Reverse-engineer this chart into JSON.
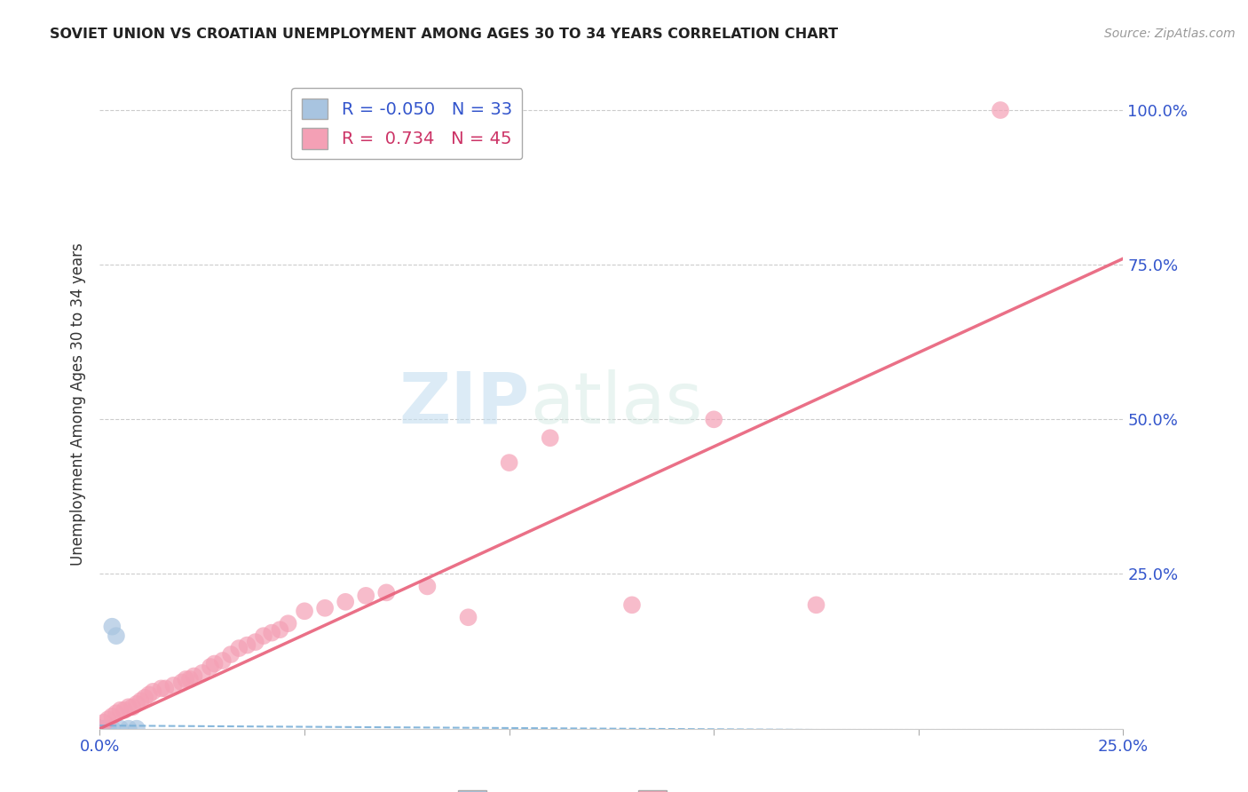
{
  "title": "SOVIET UNION VS CROATIAN UNEMPLOYMENT AMONG AGES 30 TO 34 YEARS CORRELATION CHART",
  "source": "Source: ZipAtlas.com",
  "ylabel": "Unemployment Among Ages 30 to 34 years",
  "xlim": [
    0.0,
    0.25
  ],
  "ylim": [
    0.0,
    1.05
  ],
  "xticks": [
    0.0,
    0.05,
    0.1,
    0.15,
    0.2,
    0.25
  ],
  "xticklabels": [
    "0.0%",
    "",
    "",
    "",
    "",
    "25.0%"
  ],
  "yticks": [
    0.0,
    0.25,
    0.5,
    0.75,
    1.0
  ],
  "yticklabels": [
    "",
    "25.0%",
    "50.0%",
    "75.0%",
    "100.0%"
  ],
  "soviet_R": -0.05,
  "soviet_N": 33,
  "croatian_R": 0.734,
  "croatian_N": 45,
  "soviet_color": "#a8c4e0",
  "croatian_color": "#f4a0b5",
  "soviet_line_color": "#7ab0d8",
  "croatian_line_color": "#e8607a",
  "watermark_zip": "ZIP",
  "watermark_atlas": "atlas",
  "soviet_x": [
    0.0,
    0.0,
    0.0,
    0.0,
    0.0,
    0.0,
    0.0,
    0.0,
    0.0,
    0.0,
    0.0,
    0.0,
    0.0,
    0.0,
    0.0,
    0.0,
    0.0,
    0.0,
    0.0,
    0.0,
    0.0,
    0.0,
    0.001,
    0.001,
    0.001,
    0.002,
    0.002,
    0.003,
    0.003,
    0.004,
    0.005,
    0.007,
    0.009
  ],
  "soviet_y": [
    0.0,
    0.0,
    0.0,
    0.0,
    0.0,
    0.0,
    0.0,
    0.0,
    0.0,
    0.0,
    0.0,
    0.0,
    0.0,
    0.0,
    0.0,
    0.0,
    0.0,
    0.0,
    0.0,
    0.0,
    0.0,
    0.0,
    0.0,
    0.0,
    0.0,
    0.0,
    0.0,
    0.0,
    0.165,
    0.15,
    0.0,
    0.0,
    0.0
  ],
  "croatian_x": [
    0.001,
    0.002,
    0.003,
    0.004,
    0.005,
    0.006,
    0.007,
    0.008,
    0.009,
    0.01,
    0.011,
    0.012,
    0.013,
    0.015,
    0.016,
    0.018,
    0.02,
    0.021,
    0.022,
    0.023,
    0.025,
    0.027,
    0.028,
    0.03,
    0.032,
    0.034,
    0.036,
    0.038,
    0.04,
    0.042,
    0.044,
    0.046,
    0.05,
    0.055,
    0.06,
    0.065,
    0.07,
    0.08,
    0.09,
    0.1,
    0.11,
    0.13,
    0.15,
    0.175,
    0.22
  ],
  "croatian_y": [
    0.01,
    0.015,
    0.02,
    0.025,
    0.03,
    0.03,
    0.035,
    0.035,
    0.04,
    0.045,
    0.05,
    0.055,
    0.06,
    0.065,
    0.065,
    0.07,
    0.075,
    0.08,
    0.08,
    0.085,
    0.09,
    0.1,
    0.105,
    0.11,
    0.12,
    0.13,
    0.135,
    0.14,
    0.15,
    0.155,
    0.16,
    0.17,
    0.19,
    0.195,
    0.205,
    0.215,
    0.22,
    0.23,
    0.18,
    0.43,
    0.47,
    0.2,
    0.5,
    0.2,
    1.0
  ],
  "soviet_line_x": [
    0.0,
    0.25
  ],
  "soviet_line_y": [
    0.005,
    -0.005
  ],
  "croatian_line_x": [
    0.0,
    0.25
  ],
  "croatian_line_y": [
    0.0,
    0.76
  ]
}
